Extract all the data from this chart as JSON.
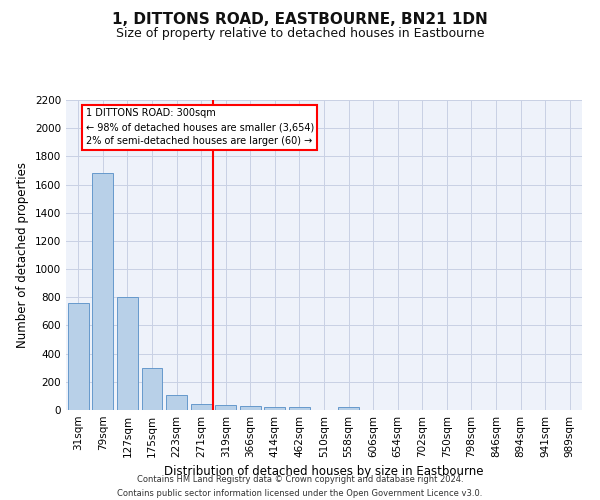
{
  "title": "1, DITTONS ROAD, EASTBOURNE, BN21 1DN",
  "subtitle": "Size of property relative to detached houses in Eastbourne",
  "xlabel": "Distribution of detached houses by size in Eastbourne",
  "ylabel": "Number of detached properties",
  "footer_line1": "Contains HM Land Registry data © Crown copyright and database right 2024.",
  "footer_line2": "Contains public sector information licensed under the Open Government Licence v3.0.",
  "categories": [
    "31sqm",
    "79sqm",
    "127sqm",
    "175sqm",
    "223sqm",
    "271sqm",
    "319sqm",
    "366sqm",
    "414sqm",
    "462sqm",
    "510sqm",
    "558sqm",
    "606sqm",
    "654sqm",
    "702sqm",
    "750sqm",
    "798sqm",
    "846sqm",
    "894sqm",
    "941sqm",
    "989sqm"
  ],
  "values": [
    760,
    1680,
    800,
    300,
    110,
    40,
    35,
    30,
    20,
    20,
    0,
    20,
    0,
    0,
    0,
    0,
    0,
    0,
    0,
    0,
    0
  ],
  "bar_color": "#b8d0e8",
  "bar_edge_color": "#6699cc",
  "ylim": [
    0,
    2200
  ],
  "yticks": [
    0,
    200,
    400,
    600,
    800,
    1000,
    1200,
    1400,
    1600,
    1800,
    2000,
    2200
  ],
  "property_label": "1 DITTONS ROAD: 300sqm",
  "annotation_line1": "← 98% of detached houses are smaller (3,654)",
  "annotation_line2": "2% of semi-detached houses are larger (60) →",
  "vline_x_index": 5.5,
  "background_color": "#eef2fa",
  "grid_color": "#c8d0e4",
  "title_fontsize": 11,
  "subtitle_fontsize": 9,
  "xlabel_fontsize": 8.5,
  "ylabel_fontsize": 8.5,
  "tick_fontsize": 7.5,
  "annotation_fontsize": 7,
  "footer_fontsize": 6
}
